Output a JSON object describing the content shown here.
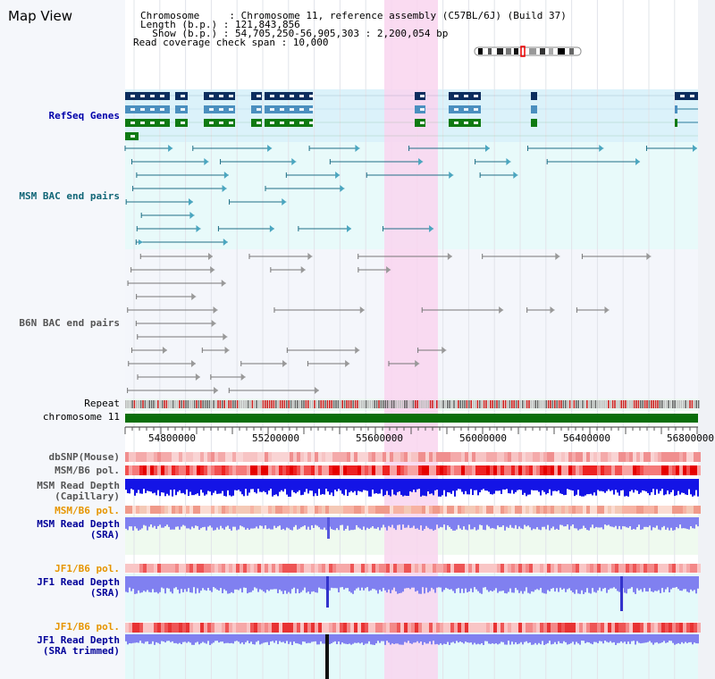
{
  "header": {
    "title": "Map View",
    "chromosome_line": "Chromosome     : Chromosome 11, reference assembly (C57BL/6J) (Build 37)",
    "length_line": "Length (b.p.) : 121,843,856",
    "show_line": "  Show (b.p.) : 54,705,250-56,905,303 : 2,200,054 bp",
    "coverage_line": "Read coverage check span : 10,000"
  },
  "tracks": {
    "refseq": "RefSeq Genes",
    "msm_bac": "MSM BAC end pairs",
    "b6n_bac": "B6N BAC end pairs",
    "repeat": "Repeat",
    "chromosome": "chromosome 11",
    "dbsnp": "dbSNP(Mouse)",
    "msm_pol": "MSM/B6 pol.",
    "msm_depth_cap_1": "MSM Read Depth",
    "msm_depth_cap_2": "(Capillary)",
    "msm_pol2": "MSM/B6 pol.",
    "msm_depth_sra_1": "MSM Read Depth",
    "msm_depth_sra_2": "(SRA)",
    "jf1_pol": "JF1/B6 pol.",
    "jf1_depth_sra_1": "JF1 Read Depth",
    "jf1_depth_sra_2": "(SRA)",
    "jf1_pol2": "JF1/B6 pol.",
    "jf1_depth_trim_1": "JF1 Read Depth",
    "jf1_depth_trim_2": "(SRA trimmed)"
  },
  "scale": {
    "ticks": [
      "54800000",
      "55200000",
      "55600000",
      "56000000",
      "56400000",
      "56800000"
    ]
  },
  "colors": {
    "highlight": "#f9d5ef",
    "refseq_bg": "#dbf2fa",
    "msm_bg": "#e8fafa",
    "b6n_bg": "#f4f6fb",
    "navy_gene": "#0b2d5e",
    "steel_gene": "#4a8fbf",
    "green_gene": "#0f7a12",
    "chromosome_bar": "#0a6e0a",
    "depth_capillary": "#1414e6",
    "depth_sra": "#8080f0"
  }
}
